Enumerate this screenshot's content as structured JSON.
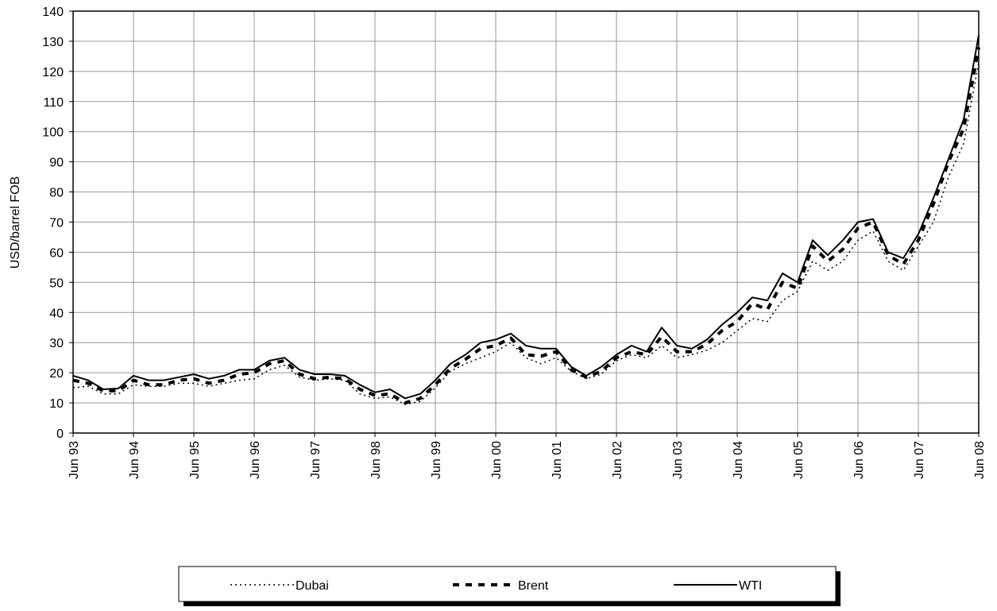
{
  "chart_data": {
    "type": "line",
    "y_label": "USD/barrel FOB",
    "categories": [
      "Jun 93",
      null,
      null,
      null,
      "Jun 94",
      null,
      null,
      null,
      "Jun 95",
      null,
      null,
      null,
      "Jun 96",
      null,
      null,
      null,
      "Jun 97",
      null,
      null,
      null,
      "Jun 98",
      null,
      null,
      null,
      "Jun 99",
      null,
      null,
      null,
      "Jun 00",
      null,
      null,
      null,
      "Jun 01",
      null,
      null,
      null,
      "Jun 02",
      null,
      null,
      null,
      "Jun 03",
      null,
      null,
      null,
      "Jun 04",
      null,
      null,
      null,
      "Jun 05",
      null,
      null,
      null,
      "Jun 06",
      null,
      null,
      null,
      "Jun 07",
      null,
      null,
      null,
      "Jun 08"
    ],
    "series": [
      {
        "name": "Dubai",
        "color": "#000000",
        "dash": "dotted",
        "values": [
          15,
          15.5,
          13,
          13,
          16,
          15.5,
          15.5,
          16.5,
          16.5,
          15.5,
          16.5,
          17.5,
          18,
          21,
          22.5,
          18.5,
          17.5,
          18,
          17.5,
          13,
          11.5,
          12,
          9.5,
          10.5,
          15,
          20.5,
          23,
          25,
          27,
          30,
          25,
          23,
          25,
          20.5,
          18,
          19.5,
          24,
          26,
          25,
          29,
          25,
          26,
          27.5,
          30,
          34,
          38,
          37,
          44,
          47,
          57,
          54,
          57,
          64,
          67,
          57,
          54,
          62,
          70,
          85,
          96,
          123
        ]
      },
      {
        "name": "Brent",
        "color": "#000000",
        "dash": "dashed",
        "values": [
          17.5,
          16.5,
          14,
          14,
          17.5,
          16,
          16,
          17.5,
          18,
          16.5,
          17.5,
          19.5,
          20,
          23,
          24,
          19.5,
          18,
          18.5,
          18,
          14.5,
          12.5,
          13,
          10,
          11.5,
          16,
          21.5,
          24.5,
          28,
          29,
          31.5,
          26,
          25.5,
          27,
          21,
          18.5,
          20.5,
          25,
          27,
          26,
          32,
          27,
          27,
          29.5,
          34,
          37,
          43,
          41,
          50,
          48,
          62,
          57,
          61,
          68,
          70,
          59,
          56,
          64,
          76,
          90,
          101,
          128
        ]
      },
      {
        "name": "WTI",
        "color": "#000000",
        "dash": "solid",
        "values": [
          19,
          17.5,
          14.5,
          14.8,
          19,
          17.5,
          17.5,
          18.5,
          19.5,
          18,
          19,
          21,
          21,
          24,
          25,
          21,
          19.5,
          19.5,
          19,
          16,
          13.5,
          14.5,
          11.5,
          13,
          17.5,
          23,
          26,
          30,
          31,
          33,
          29,
          28,
          28,
          22,
          19,
          22,
          26,
          29,
          27,
          35,
          29,
          28,
          31,
          36,
          40,
          45,
          44,
          53,
          50,
          64,
          59,
          64,
          70,
          71,
          60,
          58,
          66,
          78,
          91,
          104,
          132
        ]
      }
    ],
    "ylim": [
      0,
      140
    ],
    "yticks": [
      0,
      10,
      20,
      30,
      40,
      50,
      60,
      70,
      80,
      90,
      100,
      110,
      120,
      130,
      140
    ],
    "grid": true,
    "legend": "bottom"
  }
}
